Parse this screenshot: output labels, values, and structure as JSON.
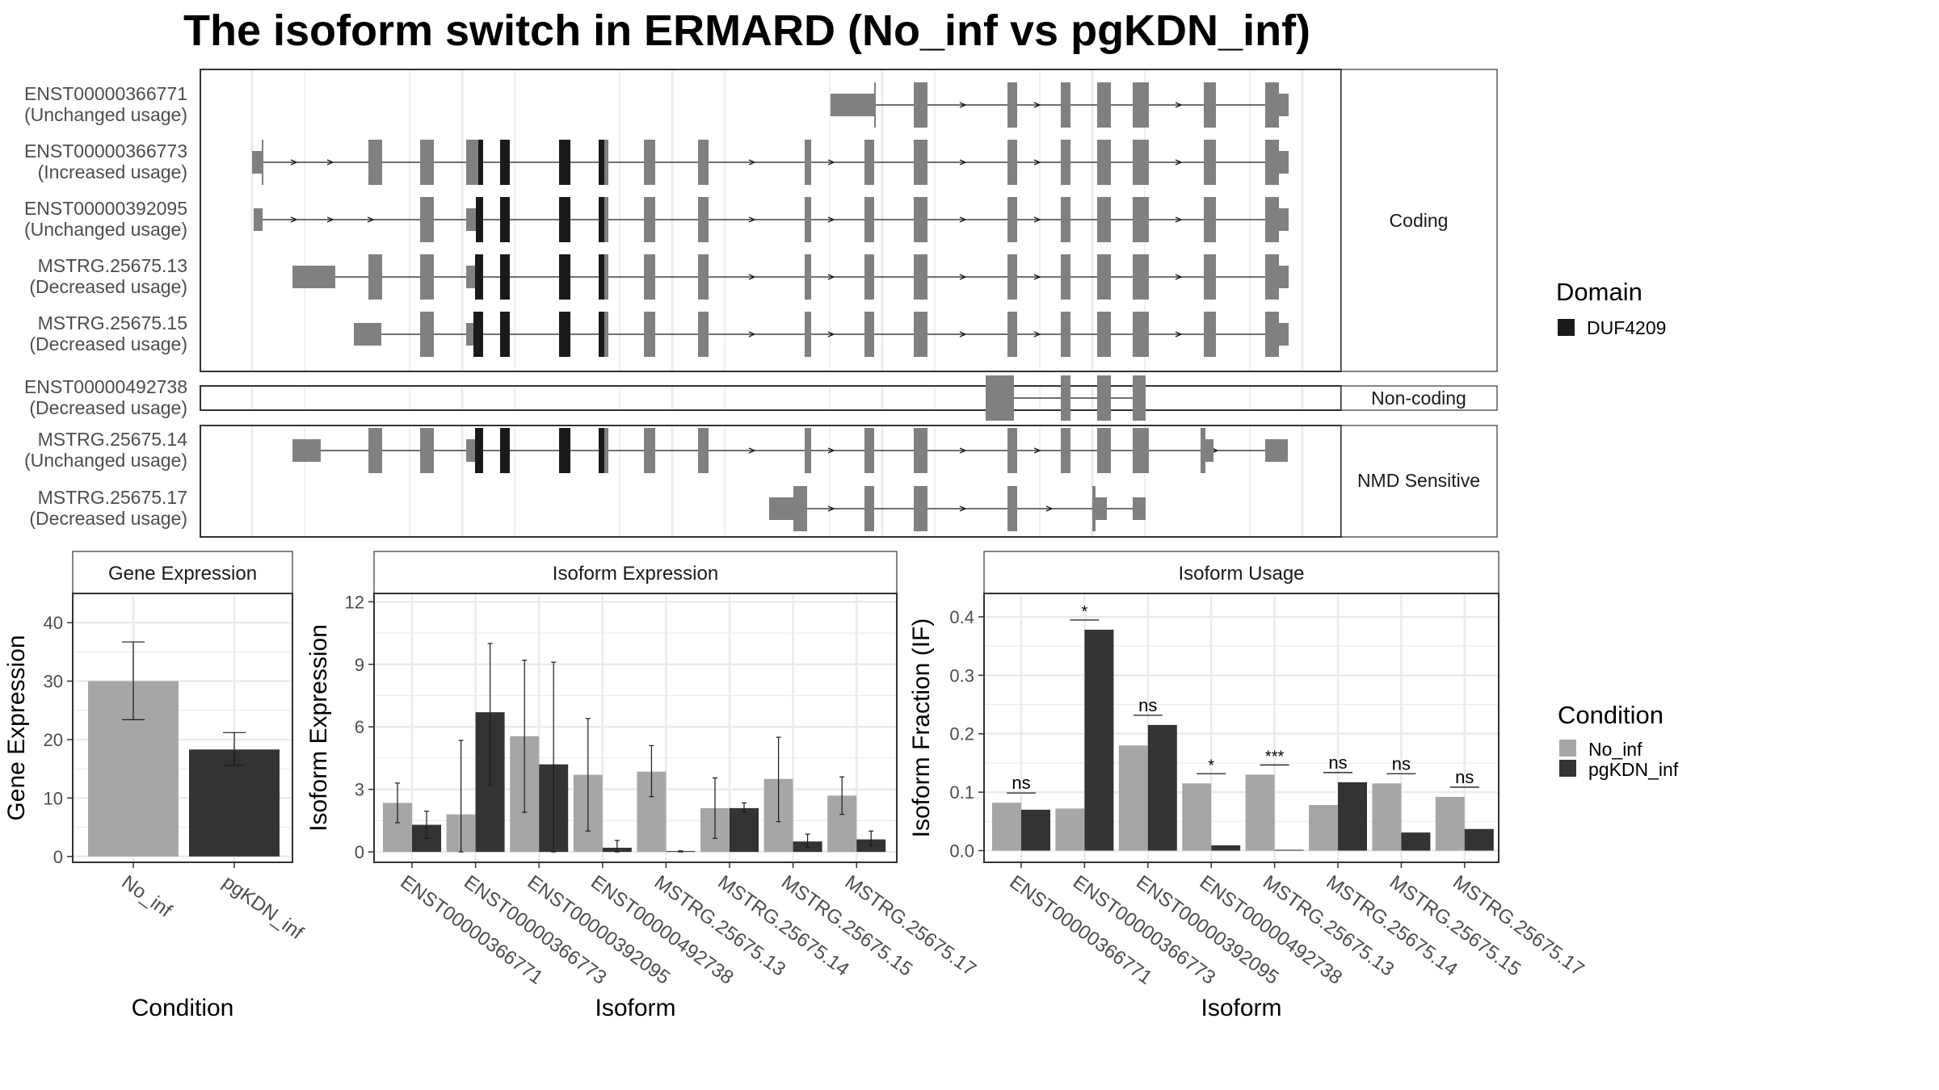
{
  "title": "The isoform switch in ERMARD (No_inf vs pgKDN_inf)",
  "colors": {
    "exon": "#808080",
    "domain": "#1a1a1a",
    "no_inf": "#a6a6a6",
    "pgkdn_inf": "#333333",
    "grid": "#ebebeb",
    "panel_border": "#333333",
    "strip_fill": "#ffffff"
  },
  "transcripts": {
    "facets": [
      "Coding",
      "Non-coding",
      "NMD Sensitive"
    ],
    "labels": [
      {
        "id": "ENST00000366771",
        "usage": "(Unchanged usage)"
      },
      {
        "id": "ENST00000366773",
        "usage": "(Increased usage)"
      },
      {
        "id": "ENST00000392095",
        "usage": "(Unchanged usage)"
      },
      {
        "id": "MSTRG.25675.13",
        "usage": "(Decreased usage)"
      },
      {
        "id": "MSTRG.25675.15",
        "usage": "(Decreased usage)"
      },
      {
        "id": "ENST00000492738",
        "usage": "(Decreased usage)"
      },
      {
        "id": "MSTRG.25675.14",
        "usage": "(Unchanged usage)"
      },
      {
        "id": "MSTRG.25675.17",
        "usage": "(Decreased usage)"
      }
    ]
  },
  "domain_legend": {
    "title": "Domain",
    "items": [
      "DUF4209"
    ]
  },
  "condition_legend": {
    "title": "Condition",
    "items": [
      "No_inf",
      "pgKDN_inf"
    ]
  },
  "chart_data": [
    {
      "type": "bar",
      "title": "Gene Expression",
      "xlabel": "Condition",
      "ylabel": "Gene Expression",
      "categories": [
        "No_inf",
        "pgKDN_inf"
      ],
      "values": [
        30,
        18.3
      ],
      "error_low": [
        23.4,
        15.6
      ],
      "error_high": [
        36.7,
        21.2
      ],
      "yticks": [
        "0",
        "10",
        "20",
        "30",
        "40"
      ],
      "ylim": [
        -1,
        45
      ],
      "grid": true
    },
    {
      "type": "bar",
      "title": "Isoform Expression",
      "xlabel": "Isoform",
      "ylabel": "Isoform Expression",
      "categories": [
        "ENST00000366771",
        "ENST00000366773",
        "ENST00000392095",
        "ENST00000492738",
        "MSTRG.25675.13",
        "MSTRG.25675.14",
        "MSTRG.25675.15",
        "MSTRG.25675.17"
      ],
      "series": [
        {
          "name": "No_inf",
          "values": [
            2.35,
            1.8,
            5.55,
            3.7,
            3.85,
            2.1,
            3.5,
            2.7
          ],
          "error_low": [
            1.4,
            0.0,
            1.9,
            1.0,
            2.65,
            0.65,
            1.45,
            1.8
          ],
          "error_high": [
            3.3,
            5.35,
            9.2,
            6.4,
            5.1,
            3.55,
            5.5,
            3.6
          ]
        },
        {
          "name": "pgKDN_inf",
          "values": [
            1.3,
            6.7,
            4.2,
            0.2,
            0.0,
            2.1,
            0.5,
            0.6
          ],
          "error_low": [
            0.65,
            3.2,
            0.0,
            0.0,
            0.0,
            1.9,
            0.2,
            0.3
          ],
          "error_high": [
            1.95,
            10.0,
            9.1,
            0.55,
            0.05,
            2.35,
            0.85,
            1.0
          ]
        }
      ],
      "yticks": [
        "0",
        "3",
        "6",
        "9",
        "12"
      ],
      "ylim": [
        -0.5,
        12.4
      ],
      "grid": true
    },
    {
      "type": "bar",
      "title": "Isoform Usage",
      "xlabel": "Isoform",
      "ylabel": "Isoform Fraction (IF)",
      "categories": [
        "ENST00000366771",
        "ENST00000366773",
        "ENST00000392095",
        "ENST00000492738",
        "MSTRG.25675.13",
        "MSTRG.25675.14",
        "MSTRG.25675.15",
        "MSTRG.25675.17"
      ],
      "series": [
        {
          "name": "No_inf",
          "values": [
            0.082,
            0.072,
            0.18,
            0.115,
            0.13,
            0.078,
            0.115,
            0.092
          ]
        },
        {
          "name": "pgKDN_inf",
          "values": [
            0.07,
            0.378,
            0.215,
            0.009,
            0.0,
            0.117,
            0.031,
            0.037
          ]
        }
      ],
      "significance": [
        "ns",
        "*",
        "ns",
        "*",
        "***",
        "ns",
        "ns",
        "ns"
      ],
      "yticks": [
        "0.0",
        "0.1",
        "0.2",
        "0.3",
        "0.4"
      ],
      "ylim": [
        -0.02,
        0.44
      ],
      "grid": true
    }
  ]
}
